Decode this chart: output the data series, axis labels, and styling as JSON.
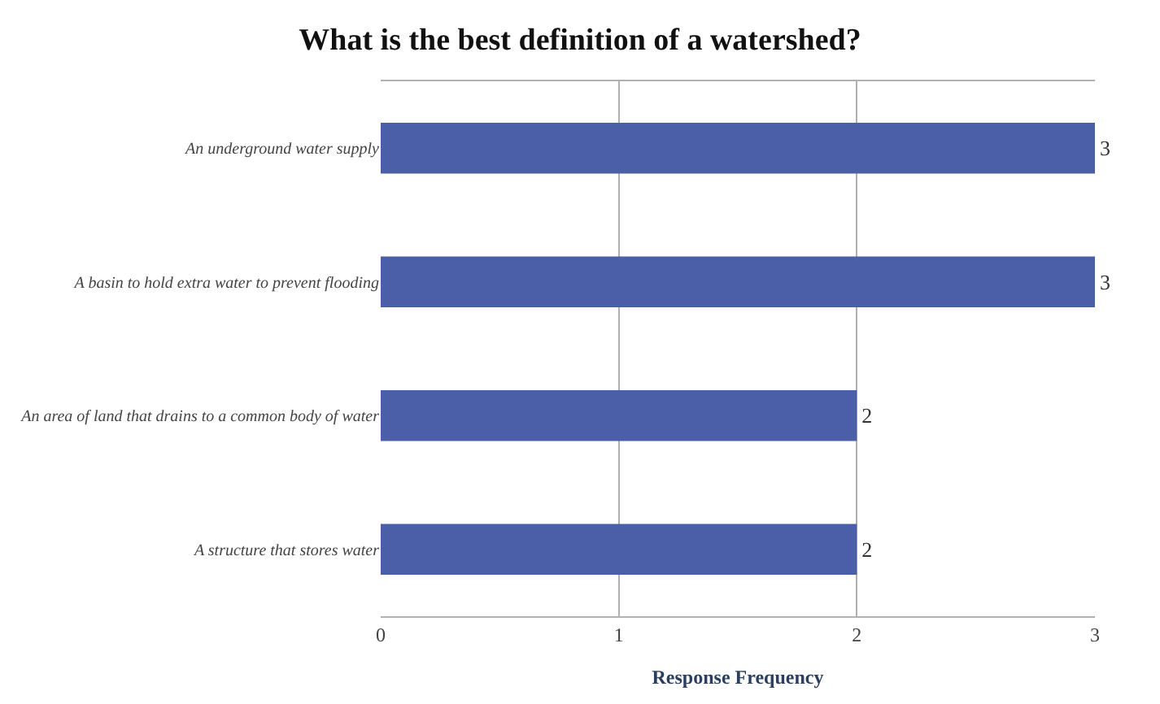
{
  "chart_data": {
    "type": "bar",
    "orientation": "horizontal",
    "title": "What is the best definition of a watershed?",
    "xlabel": "Response Frequency",
    "categories": [
      "An underground water supply",
      "A basin to hold extra water to prevent flooding",
      "An area of land that drains to a common body of water",
      "A structure that stores water"
    ],
    "values": [
      3,
      3,
      2,
      2
    ],
    "color": "#4a5fa8",
    "data_labels": true,
    "xlim": [
      0,
      3
    ],
    "xticks": [
      0,
      1,
      2,
      3
    ],
    "grid": "x"
  }
}
